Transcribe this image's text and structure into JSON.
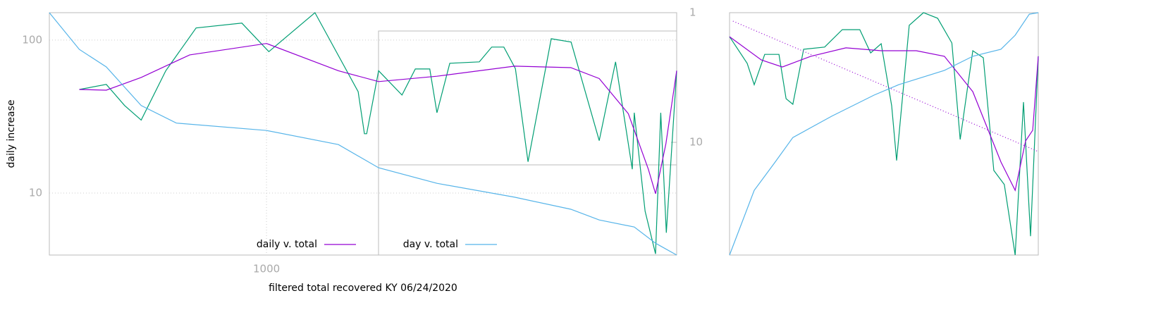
{
  "chart_data": [
    {
      "type": "line",
      "xlabel": "filtered total recovered KY 06/24/2020",
      "ylabel": "daily increase",
      "xlog": true,
      "ylog": true,
      "y2log": true,
      "grid": true,
      "legend": "bottom",
      "xlim": [
        395,
        5780
      ],
      "xticks": [
        1000
      ],
      "ylim": [
        3.93,
        151
      ],
      "yticks": [
        10,
        100
      ],
      "y2lim": [
        74,
        1
      ],
      "y2ticks": [
        1,
        10
      ],
      "series": [
        {
          "color": "#009e73",
          "x": [
            449,
            504,
            545,
            585,
            650,
            740,
            900,
            1010,
            1230,
            1480,
            1520,
            1535,
            1615,
            1785,
            1890,
            2010,
            2073,
            2190,
            2485,
            2620,
            2760,
            2900,
            3060,
            3380,
            3680,
            4150,
            4450,
            4780,
            4820,
            5050,
            5280,
            5400,
            5530,
            5780
          ],
          "values": [
            47.5,
            51.3,
            37.3,
            30,
            63,
            120,
            129,
            84,
            151,
            46,
            24.4,
            24.4,
            63,
            43.7,
            64.7,
            64.7,
            33.5,
            70.5,
            72,
            90,
            90,
            65,
            16,
            102,
            97,
            22,
            72,
            14.3,
            33.5,
            7.6,
            4,
            33.5,
            5.5,
            63
          ]
        },
        {
          "name": "daily v. total",
          "color": "#9400d3",
          "x": [
            449,
            504,
            585,
            720,
            1000,
            1360,
            1615,
            2073,
            2890,
            3675,
            4150,
            4700,
            5120,
            5280,
            5520,
            5780
          ],
          "values": [
            47.5,
            47,
            57,
            80,
            95,
            63,
            53.5,
            58,
            67.5,
            66,
            56,
            33,
            14.3,
            9.9,
            21,
            63
          ]
        },
        {
          "name": "day v. total",
          "color": "#56b4e9",
          "axis": "y2",
          "x": [
            395,
            449,
            504,
            585,
            680,
            1000,
            1360,
            1615,
            2073,
            2890,
            3675,
            4150,
            4820,
            5280,
            5780
          ],
          "values": [
            1,
            1.92,
            2.62,
            5.2,
            7.1,
            8.1,
            10.4,
            15.7,
            20.7,
            26.5,
            32.8,
            39.7,
            45,
            60,
            74
          ]
        }
      ]
    },
    {
      "type": "line",
      "xlim": [
        0,
        100
      ],
      "ylim": [
        0,
        100
      ],
      "series": [
        {
          "color": "#009e73",
          "x": [
            0,
            5.7,
            8,
            11.4,
            16,
            18.3,
            20.5,
            24,
            30.8,
            36.5,
            42.2,
            45.7,
            49.1,
            52.5,
            54.1,
            58.2,
            62.8,
            67.4,
            72,
            74.7,
            78.8,
            82.2,
            85.6,
            89,
            92.5,
            95.2,
            97.5,
            100
          ],
          "values": [
            90.1,
            79.1,
            70.3,
            82.8,
            82.8,
            64.5,
            62.2,
            84.9,
            85.8,
            93,
            93,
            83.4,
            87.2,
            61.6,
            39,
            94.8,
            100,
            97.7,
            87.5,
            47.7,
            84.3,
            81.4,
            34.9,
            29.1,
            0,
            63.1,
            7.8,
            82
          ]
        },
        {
          "color": "#9400d3",
          "x": [
            0,
            10.3,
            17.1,
            26.3,
            37.7,
            49.1,
            60.5,
            69.6,
            78.8,
            87.9,
            92.5,
            95.9,
            98.2,
            100
          ],
          "values": [
            90.1,
            80.5,
            77.6,
            82,
            85.5,
            84.3,
            84.3,
            82,
            67.4,
            38.4,
            26.7,
            47.1,
            51.5,
            82
          ]
        },
        {
          "color": "#56b4e9",
          "x": [
            0,
            8,
            14.8,
            20.5,
            33.1,
            46.8,
            54.8,
            69.6,
            78.8,
            87.9,
            92.5,
            97.1,
            100
          ],
          "values": [
            0,
            26.7,
            38.4,
            48.5,
            57.3,
            66,
            70.3,
            76.2,
            82,
            84.9,
            90.7,
            99.4,
            100
          ]
        },
        {
          "color": "#9400d3",
          "dash": "dotted",
          "x": [
            1.1,
            100
          ],
          "values": [
            96.5,
            42.7
          ]
        }
      ]
    }
  ]
}
